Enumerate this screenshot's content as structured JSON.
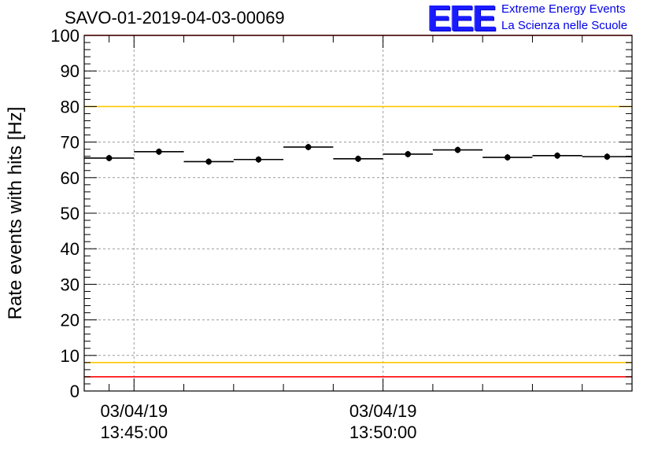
{
  "header": {
    "title": "SAVO-01-2019-04-03-00069",
    "logo_text": "EEE",
    "logo_line1": "Extreme Energy Events",
    "logo_line2": "La Scienza nelle Scuole"
  },
  "chart_data": {
    "type": "scatter",
    "title": "SAVO-01-2019-04-03-00069",
    "ylabel": "Rate events with hits [Hz]",
    "xlabel": "",
    "ylim": [
      0,
      100
    ],
    "yticks": [
      0,
      10,
      20,
      30,
      40,
      50,
      60,
      70,
      80,
      90,
      100
    ],
    "xlim_minutes": [
      -1.0,
      10.0
    ],
    "x_major_ticks": [
      {
        "minute": 0,
        "date": "03/04/19",
        "time": "13:45:00"
      },
      {
        "minute": 5,
        "date": "03/04/19",
        "time": "13:50:00"
      }
    ],
    "x_minor_tick_minutes": [
      -0.5,
      1,
      2,
      3,
      4,
      6,
      7,
      8,
      9
    ],
    "grid": true,
    "series": [
      {
        "name": "rate",
        "bin_width_minutes": 1,
        "x": [
          -0.5,
          0.5,
          1.5,
          2.5,
          3.5,
          4.5,
          5.5,
          6.5,
          7.5,
          8.5,
          9.5
        ],
        "values": [
          65.5,
          67.3,
          64.5,
          65.1,
          68.6,
          65.3,
          66.6,
          67.8,
          65.7,
          66.2,
          65.9
        ],
        "errors": [
          0.9,
          0.9,
          0.9,
          0.9,
          0.9,
          0.9,
          0.9,
          0.9,
          0.9,
          0.9,
          0.9
        ]
      }
    ],
    "reference_lines": [
      {
        "y": 100,
        "color": "#ff0000"
      },
      {
        "y": 80,
        "color": "#ffc800"
      },
      {
        "y": 8,
        "color": "#ffc800"
      },
      {
        "y": 4,
        "color": "#ff0000"
      }
    ]
  }
}
